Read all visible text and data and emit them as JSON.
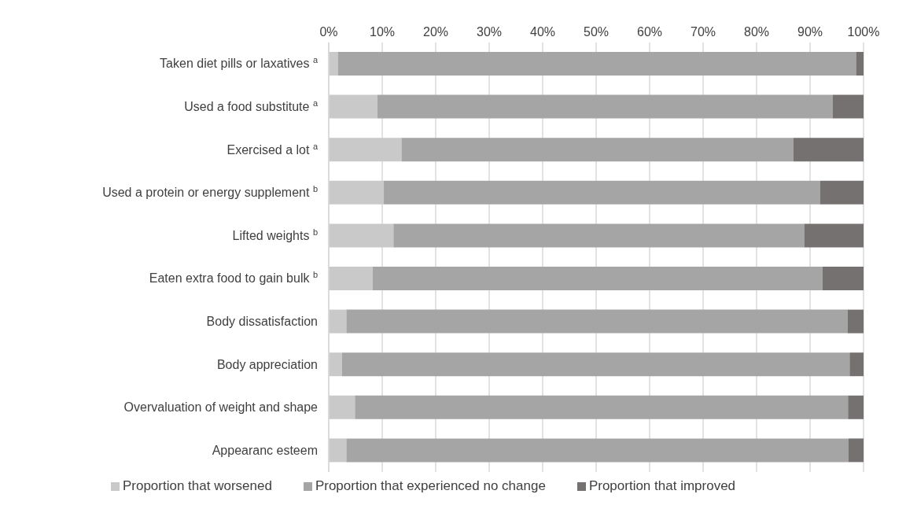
{
  "chart_data": {
    "type": "bar",
    "orientation": "horizontal",
    "stacked": true,
    "categories": [
      "Taken diet pills or laxatives $^{a}$",
      "Used a food substitute $^{a}$",
      "Exercised a lot $^{a}$",
      "Used a protein or energy supplement $^{b}$",
      "Lifted weights $^{b}$",
      "Eaten extra food to gain bulk $^{b}$",
      "Body dissatisfaction",
      "Body appreciation",
      "Overvaluation of weight and shape",
      "Appearanc esteem"
    ],
    "series": [
      {
        "name": "Proportion that worsened",
        "color": "#c9c9c9",
        "values": [
          1.7,
          9.1,
          13.6,
          10.3,
          12.1,
          8.2,
          3.3,
          2.5,
          4.9,
          3.3
        ]
      },
      {
        "name": "Proportion that experienced no change",
        "color": "#a5a5a5",
        "values": [
          96.9,
          85.1,
          73.3,
          81.6,
          76.8,
          84.1,
          93.7,
          94.9,
          92.2,
          93.9
        ]
      },
      {
        "name": "Proportion that improved",
        "color": "#767171",
        "values": [
          1.4,
          5.8,
          13.1,
          8.1,
          11.1,
          7.7,
          3.0,
          2.6,
          2.9,
          2.8
        ]
      }
    ],
    "xlim": [
      0,
      100
    ],
    "xticks": [
      {
        "value": 0,
        "label": "0%"
      },
      {
        "value": 10,
        "label": "10%"
      },
      {
        "value": 20,
        "label": "20%"
      },
      {
        "value": 30,
        "label": "30%"
      },
      {
        "value": 40,
        "label": "40%"
      },
      {
        "value": 50,
        "label": "50%"
      },
      {
        "value": 60,
        "label": "60%"
      },
      {
        "value": 70,
        "label": "70%"
      },
      {
        "value": 80,
        "label": "80%"
      },
      {
        "value": 90,
        "label": "90%"
      },
      {
        "value": 100,
        "label": "100%"
      }
    ],
    "grid": "x",
    "legend": "bottom"
  }
}
